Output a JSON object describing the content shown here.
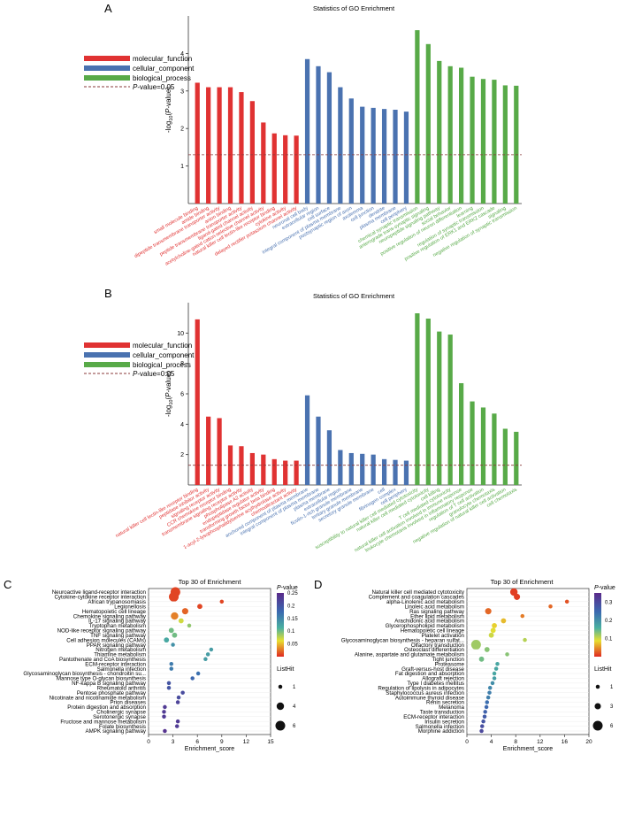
{
  "legend": {
    "mf": "molecular_function",
    "cc": "cellular_component",
    "bp": "biological_process",
    "pv_prefix": "P",
    "pv_suffix": "-value=0.05"
  },
  "colors": {
    "mf": "#e03232",
    "cc": "#4a72b0",
    "bp": "#58aa48",
    "threshold": "#8a3a3a",
    "axis": "#333333"
  },
  "panels": {
    "A": "A",
    "B": "B",
    "C": "C",
    "D": "D"
  },
  "chart_data": [
    {
      "type": "bar",
      "title": "Statistics of GO Enrichment",
      "ylabel": "-log10(P-value)",
      "ylim": [
        0,
        5
      ],
      "threshold": 1.3,
      "categories": [
        "small molecule binding",
        "amide binding",
        "dipeptide transmembrane transporter activity",
        "anion binding",
        "peptide transmembrane transporter activity",
        "ligand-gated channel activity",
        "acetylcholine-gated cation-selective channel activity",
        "natural killer cell lectin-like receptor binding",
        "cytokine activity",
        "delayed rectifier potassium channel activity",
        "neuronal cell body",
        "extracellular region",
        "cell surface",
        "integral component of plasma membrane",
        "postsynaptic region of axon",
        "axolemma",
        "cell junction",
        "dendrite",
        "plasma membrane",
        "cell periphery",
        "chemical synaptic transmission",
        "anterograde trans-synaptic signaling",
        "neuropeptide signaling pathway",
        "social behavior",
        "positive regulation of neuron differentiation",
        "learning",
        "regulation of synaptic transmission",
        "positive regulation of ERK1 and ERK2 cascade",
        "signaling",
        "negative regulation of synaptic transmission"
      ],
      "groups": [
        "mf",
        "mf",
        "mf",
        "mf",
        "mf",
        "mf",
        "mf",
        "mf",
        "mf",
        "mf",
        "cc",
        "cc",
        "cc",
        "cc",
        "cc",
        "cc",
        "cc",
        "cc",
        "cc",
        "cc",
        "bp",
        "bp",
        "bp",
        "bp",
        "bp",
        "bp",
        "bp",
        "bp",
        "bp",
        "bp"
      ],
      "values": [
        3.22,
        3.1,
        3.1,
        3.1,
        2.97,
        2.73,
        2.16,
        1.87,
        1.82,
        1.81,
        3.85,
        3.66,
        3.5,
        3.1,
        2.8,
        2.58,
        2.55,
        2.52,
        2.5,
        2.45,
        4.62,
        4.25,
        3.8,
        3.66,
        3.62,
        3.38,
        3.32,
        3.3,
        3.15,
        3.14
      ]
    },
    {
      "type": "bar",
      "title": "Statistics of GO Enrichment",
      "ylabel": "-log10(P-value)",
      "ylim": [
        0,
        12
      ],
      "threshold": 1.3,
      "categories": [
        "natural killer cell lectin-like receptor binding",
        "peptidase inhibitor activity",
        "signaling receptor activity",
        "CCR chemokine receptor binding",
        "transmembrane signaling receptor activity",
        "phospholipase A2 activity",
        "endopeptidase regulator activity",
        "transforming growth factor beta binding",
        "1-acyl-2-lysophosphatidylserine acylhydrolase activity",
        "chemoattractant activity",
        "anchored component of plasma membrane",
        "integral component of plasma membrane",
        "plasma membrane",
        "extracellular region",
        "ficolin-1-rich granule membrane",
        "tertiary granule membrane",
        "secretory granule membrane",
        "cell",
        "fibrinogen complex",
        "cell periphery",
        "susceptibility to natural killer cell mediated cytotoxicity",
        "natural killer cell mediated cytotoxicity",
        "cell killing",
        "T cell mediated cytotoxicity",
        "natural killer cell activation involved in immune response",
        "leukocyte chemotaxis involved in inflammatory response",
        "regulation of T cell activation",
        "granulocyte chemotaxis",
        "negative regulation of natural killer cell activation",
        "cell chemotaxis"
      ],
      "groups": [
        "mf",
        "mf",
        "mf",
        "mf",
        "mf",
        "mf",
        "mf",
        "mf",
        "mf",
        "mf",
        "cc",
        "cc",
        "cc",
        "cc",
        "cc",
        "cc",
        "cc",
        "cc",
        "cc",
        "cc",
        "bp",
        "bp",
        "bp",
        "bp",
        "bp",
        "bp",
        "bp",
        "bp",
        "bp",
        "bp"
      ],
      "values": [
        10.9,
        4.5,
        4.4,
        2.6,
        2.55,
        2.1,
        2.0,
        1.7,
        1.6,
        1.6,
        5.9,
        4.5,
        3.6,
        2.3,
        2.1,
        2.05,
        2.0,
        1.7,
        1.65,
        1.6,
        11.3,
        10.95,
        10.1,
        9.9,
        6.7,
        5.5,
        5.1,
        4.7,
        3.7,
        3.5
      ]
    },
    {
      "type": "scatter",
      "title": "Top 30 of  Enrichment",
      "xlabel": "Enrichment_score",
      "xlim": [
        0,
        15
      ],
      "xticks": [
        0,
        3,
        6,
        9,
        12,
        15
      ],
      "color_label": "P-value",
      "color_range": [
        0,
        0.25
      ],
      "color_ticks": [
        "0.25",
        "0.2",
        "0.15",
        "0.1",
        "0.05"
      ],
      "size_label": "ListHit",
      "size_legend": [
        "1",
        "4",
        "6"
      ],
      "categories": [
        "Neuroactive ligand-receptor interaction",
        "Cytokine-cytokine receptor interaction",
        "African trypanosomiasis",
        "Legionellosis",
        "Hematopoietic cell lineage",
        "Chemokine signaling pathway",
        "IL-17 signaling pathway",
        "Tryptophan metabolism",
        "NOD-like receptor signaling pathway",
        "TNF signaling pathway",
        "Cell adhesion molecules (CAMs)",
        "PPAR signaling pathway",
        "Nitrogen metabolism",
        "Thiamine metabolism",
        "Pantothenate and CoA biosynthesis",
        "ECM-receptor interaction",
        "Salmonella infection",
        "Glycosaminoglycan biosynthesis - chondroitin su...",
        "Mannose type O-glycan biosynthesis",
        "NF-kappa B signaling pathway",
        "Rheumatoid arthritis",
        "Pentose phosphate pathway",
        "Nicotinate and nicotinamide metabolism",
        "Prion diseases",
        "Protein digestion and absorption",
        "Cholinergic synapse",
        "Serotonergic synapse",
        "Fructose and mannose metabolism",
        "Folate biosynthesis",
        "AMPK signaling pathway"
      ],
      "x": [
        3.3,
        3.1,
        9.0,
        6.3,
        4.5,
        3.2,
        4.0,
        5.0,
        2.8,
        3.2,
        2.2,
        3.0,
        7.7,
        7.3,
        7.0,
        2.8,
        2.8,
        6.1,
        5.4,
        2.5,
        2.5,
        4.2,
        3.7,
        3.6,
        2.0,
        1.9,
        1.9,
        3.6,
        3.5,
        2.0
      ],
      "pvalue": [
        0.01,
        0.01,
        0.01,
        0.01,
        0.02,
        0.03,
        0.07,
        0.09,
        0.1,
        0.1,
        0.12,
        0.14,
        0.13,
        0.13,
        0.13,
        0.16,
        0.16,
        0.17,
        0.18,
        0.2,
        0.2,
        0.21,
        0.21,
        0.22,
        0.23,
        0.23,
        0.23,
        0.23,
        0.23,
        0.24
      ],
      "listhit": [
        6,
        6,
        1,
        2,
        3,
        4,
        2,
        1,
        2,
        2,
        2,
        1,
        1,
        1,
        1,
        1,
        1,
        1,
        1,
        1,
        1,
        1,
        1,
        1,
        1,
        1,
        1,
        1,
        1,
        1
      ]
    },
    {
      "type": "scatter",
      "title": "Top 30 of  Enrichment",
      "xlabel": "Enrichment_score",
      "xlim": [
        0,
        20
      ],
      "xticks": [
        0,
        4,
        8,
        12,
        16,
        20
      ],
      "color_label": "P-value",
      "color_range": [
        0,
        0.35
      ],
      "color_ticks": [
        "0.3",
        "0.2",
        "0.1"
      ],
      "size_label": "ListHit",
      "size_legend": [
        "1",
        "3",
        "6"
      ],
      "categories": [
        "Natural killer cell mediated cytotoxicity",
        "Complement and coagulation cascades",
        "alpha-Linolenic acid metabolism",
        "Linoleic acid metabolism",
        "Ras signaling pathway",
        "Ether lipid metabolism",
        "Arachidonic acid metabolism",
        "Glycerophospholipid metabolism",
        "Hematopoietic cell lineage",
        "Platelet activation",
        "Glycosaminoglycan biosynthesis - heparan sulfat...",
        "Olfactory transduction",
        "Osteoclast differentiation",
        "Alanine, aspartate and glutamate metabolism",
        "Tight junction",
        "Proteasome",
        "Graft-versus-host disease",
        "Fat digestion and absorption",
        "Allograft rejection",
        "Type I diabetes mellitus",
        "Regulation of lipolysis in adipocytes",
        "Staphylococcus aureus infection",
        "Autoimmune thyroid disease",
        "Renin secretion",
        "Melanoma",
        "Taste transduction",
        "ECM-receptor interaction",
        "Insulin secretion",
        "Salmonella infection",
        "Morphine addiction"
      ],
      "x": [
        7.7,
        8.2,
        16.4,
        13.7,
        3.5,
        9.1,
        6.0,
        4.5,
        4.3,
        4.0,
        9.5,
        1.5,
        3.3,
        6.6,
        2.4,
        5.0,
        4.8,
        4.5,
        4.5,
        4.2,
        3.8,
        3.7,
        3.5,
        3.3,
        3.2,
        3.0,
        2.9,
        2.7,
        2.5,
        2.4
      ],
      "pvalue": [
        0.01,
        0.01,
        0.02,
        0.03,
        0.03,
        0.04,
        0.07,
        0.08,
        0.09,
        0.1,
        0.11,
        0.12,
        0.13,
        0.13,
        0.14,
        0.17,
        0.17,
        0.17,
        0.18,
        0.2,
        0.21,
        0.22,
        0.22,
        0.24,
        0.25,
        0.26,
        0.27,
        0.28,
        0.29,
        0.3
      ],
      "listhit": [
        4,
        3,
        1,
        1,
        3,
        1,
        2,
        2,
        2,
        2,
        1,
        6,
        2,
        1,
        2,
        1,
        1,
        1,
        1,
        1,
        1,
        1,
        1,
        1,
        1,
        1,
        1,
        1,
        1,
        1
      ]
    }
  ]
}
